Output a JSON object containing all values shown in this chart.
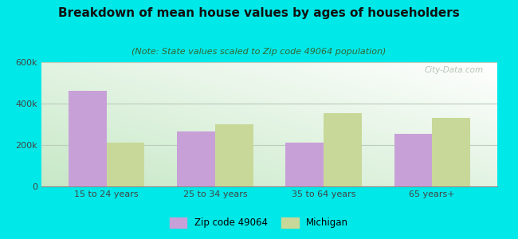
{
  "title": "Breakdown of mean house values by ages of householders",
  "subtitle": "(Note: State values scaled to Zip code 49064 population)",
  "categories": [
    "15 to 24 years",
    "25 to 34 years",
    "35 to 64 years",
    "65 years+"
  ],
  "zip_values": [
    460000,
    265000,
    210000,
    255000
  ],
  "mi_values": [
    210000,
    300000,
    355000,
    330000
  ],
  "zip_color": "#c8a0d8",
  "mi_color": "#c8d898",
  "background_outer": "#00e8e8",
  "ylim": [
    0,
    600000
  ],
  "yticks": [
    0,
    200000,
    400000,
    600000
  ],
  "ytick_labels": [
    "0",
    "200k",
    "400k",
    "600k"
  ],
  "zip_label": "Zip code 49064",
  "mi_label": "Michigan",
  "bar_width": 0.35,
  "title_fontsize": 11,
  "subtitle_fontsize": 8,
  "watermark": "City-Data.com"
}
